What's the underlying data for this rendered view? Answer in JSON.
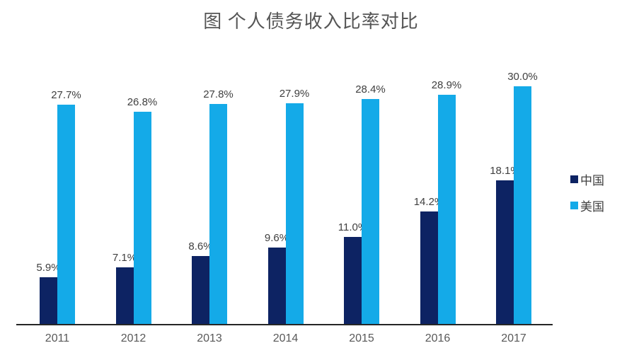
{
  "page": {
    "background": "#ffffff"
  },
  "chart_data": {
    "type": "bar",
    "title": "图 个人债务收入比率对比",
    "categories": [
      "2011",
      "2012",
      "2013",
      "2014",
      "2015",
      "2016",
      "2017"
    ],
    "series": [
      {
        "name": "中国",
        "slug": "china",
        "color": "#0d2363",
        "values": [
          5.9,
          7.1,
          8.6,
          9.6,
          11.0,
          14.2,
          18.1
        ],
        "labels": [
          "5.9%",
          "7.1%",
          "8.6%",
          "9.6%",
          "11.0%",
          "14.2%",
          "18.1%"
        ]
      },
      {
        "name": "美国",
        "slug": "usa",
        "color": "#14aae8",
        "values": [
          27.7,
          26.8,
          27.8,
          27.9,
          28.4,
          28.9,
          30.0
        ],
        "labels": [
          "27.7%",
          "26.8%",
          "27.8%",
          "27.9%",
          "28.4%",
          "28.9%",
          "30.0%"
        ]
      }
    ],
    "xlabel": "",
    "ylabel": "",
    "ylim": [
      0,
      30
    ],
    "grid": false,
    "y_axis_visible": false,
    "axis_line_color": "#262626",
    "value_label_color": "#404040",
    "tick_label_color": "#595959",
    "title_color": "#555555",
    "legend_position": "right"
  }
}
